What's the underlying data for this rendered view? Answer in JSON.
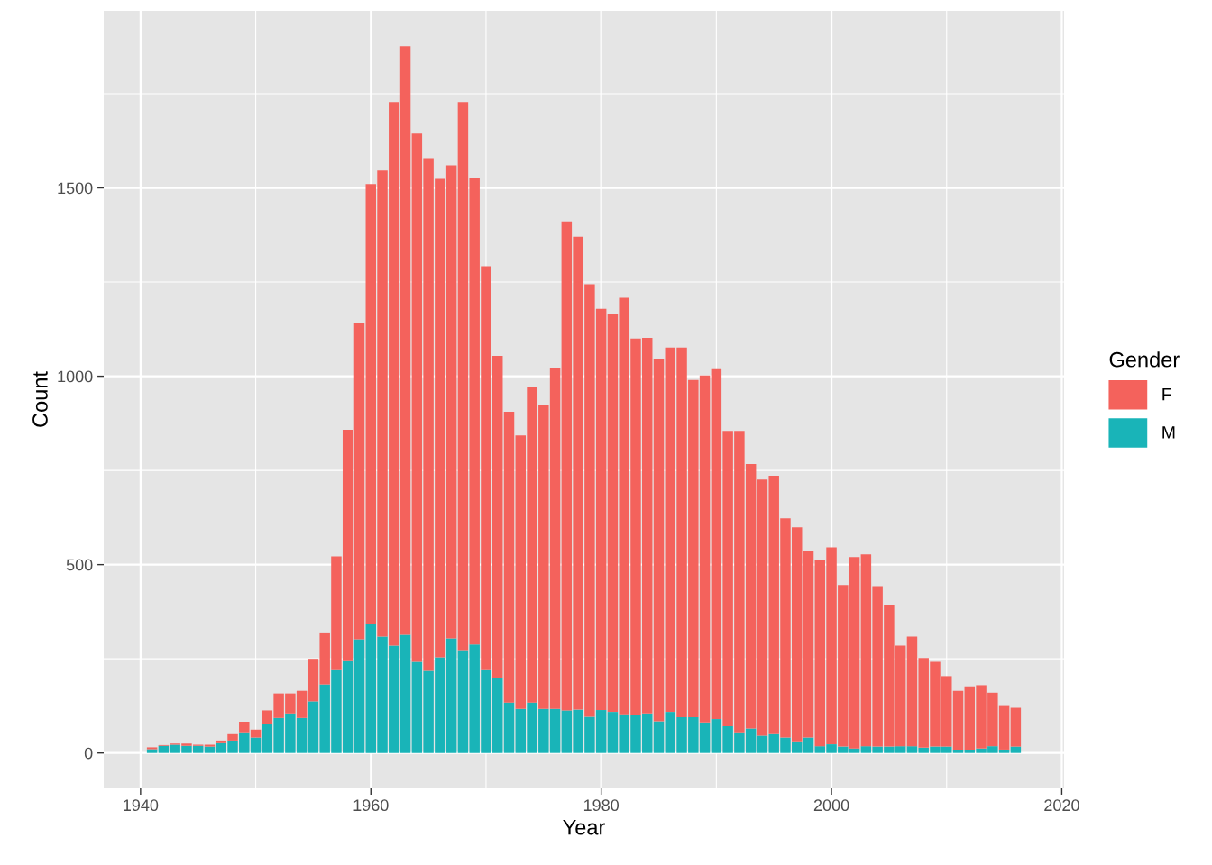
{
  "chart_data": {
    "type": "bar",
    "stacked": true,
    "xlabel": "Year",
    "ylabel": "Count",
    "legend_title": "Gender",
    "legend": "right",
    "grid": true,
    "x": [
      1941,
      1942,
      1943,
      1944,
      1945,
      1946,
      1947,
      1948,
      1949,
      1950,
      1951,
      1952,
      1953,
      1954,
      1955,
      1956,
      1957,
      1958,
      1959,
      1960,
      1961,
      1962,
      1963,
      1964,
      1965,
      1966,
      1967,
      1968,
      1969,
      1970,
      1971,
      1972,
      1973,
      1974,
      1975,
      1976,
      1977,
      1978,
      1979,
      1980,
      1981,
      1982,
      1983,
      1984,
      1985,
      1986,
      1987,
      1988,
      1989,
      1990,
      1991,
      1992,
      1993,
      1994,
      1995,
      1996,
      1997,
      1998,
      1999,
      2000,
      2001,
      2002,
      2003,
      2004,
      2005,
      2006,
      2007,
      2008,
      2009,
      2010,
      2011,
      2012,
      2013,
      2014,
      2015,
      2016
    ],
    "series": [
      {
        "name": "M",
        "color": "#19b4b8",
        "values": [
          10,
          19,
          22,
          19,
          19,
          17,
          26,
          33,
          55,
          41,
          77,
          93,
          105,
          93,
          137,
          182,
          220,
          244,
          302,
          343,
          309,
          285,
          314,
          242,
          218,
          254,
          304,
          273,
          288,
          220,
          199,
          134,
          117,
          134,
          117,
          117,
          113,
          115,
          96,
          114,
          109,
          103,
          100,
          105,
          84,
          109,
          95,
          95,
          81,
          90,
          71,
          55,
          65,
          46,
          50,
          41,
          31,
          41,
          18,
          23,
          17,
          12,
          18,
          17,
          17,
          18,
          18,
          14,
          17,
          17,
          9,
          9,
          12,
          18,
          9,
          17
        ]
      },
      {
        "name": "F",
        "color": "#f4625c",
        "values": [
          5,
          2,
          3,
          6,
          3,
          5,
          7,
          17,
          28,
          21,
          36,
          65,
          53,
          72,
          113,
          138,
          302,
          614,
          838,
          1167,
          1237,
          1443,
          1562,
          1402,
          1361,
          1270,
          1256,
          1455,
          1238,
          1072,
          855,
          772,
          726,
          836,
          808,
          906,
          1298,
          1255,
          1148,
          1065,
          1056,
          1105,
          1000,
          997,
          963,
          967,
          981,
          895,
          921,
          931,
          784,
          800,
          702,
          680,
          686,
          582,
          568,
          496,
          495,
          523,
          429,
          508,
          509,
          426,
          376,
          267,
          291,
          238,
          225,
          187,
          156,
          168,
          168,
          142,
          118,
          103
        ]
      }
    ],
    "xlim": [
      1936.8,
      2020.2
    ],
    "xticks": [
      1940,
      1960,
      1980,
      2000,
      2020
    ],
    "ylim": [
      -94,
      1970
    ],
    "yticks": [
      0,
      500,
      1000,
      1500
    ]
  }
}
